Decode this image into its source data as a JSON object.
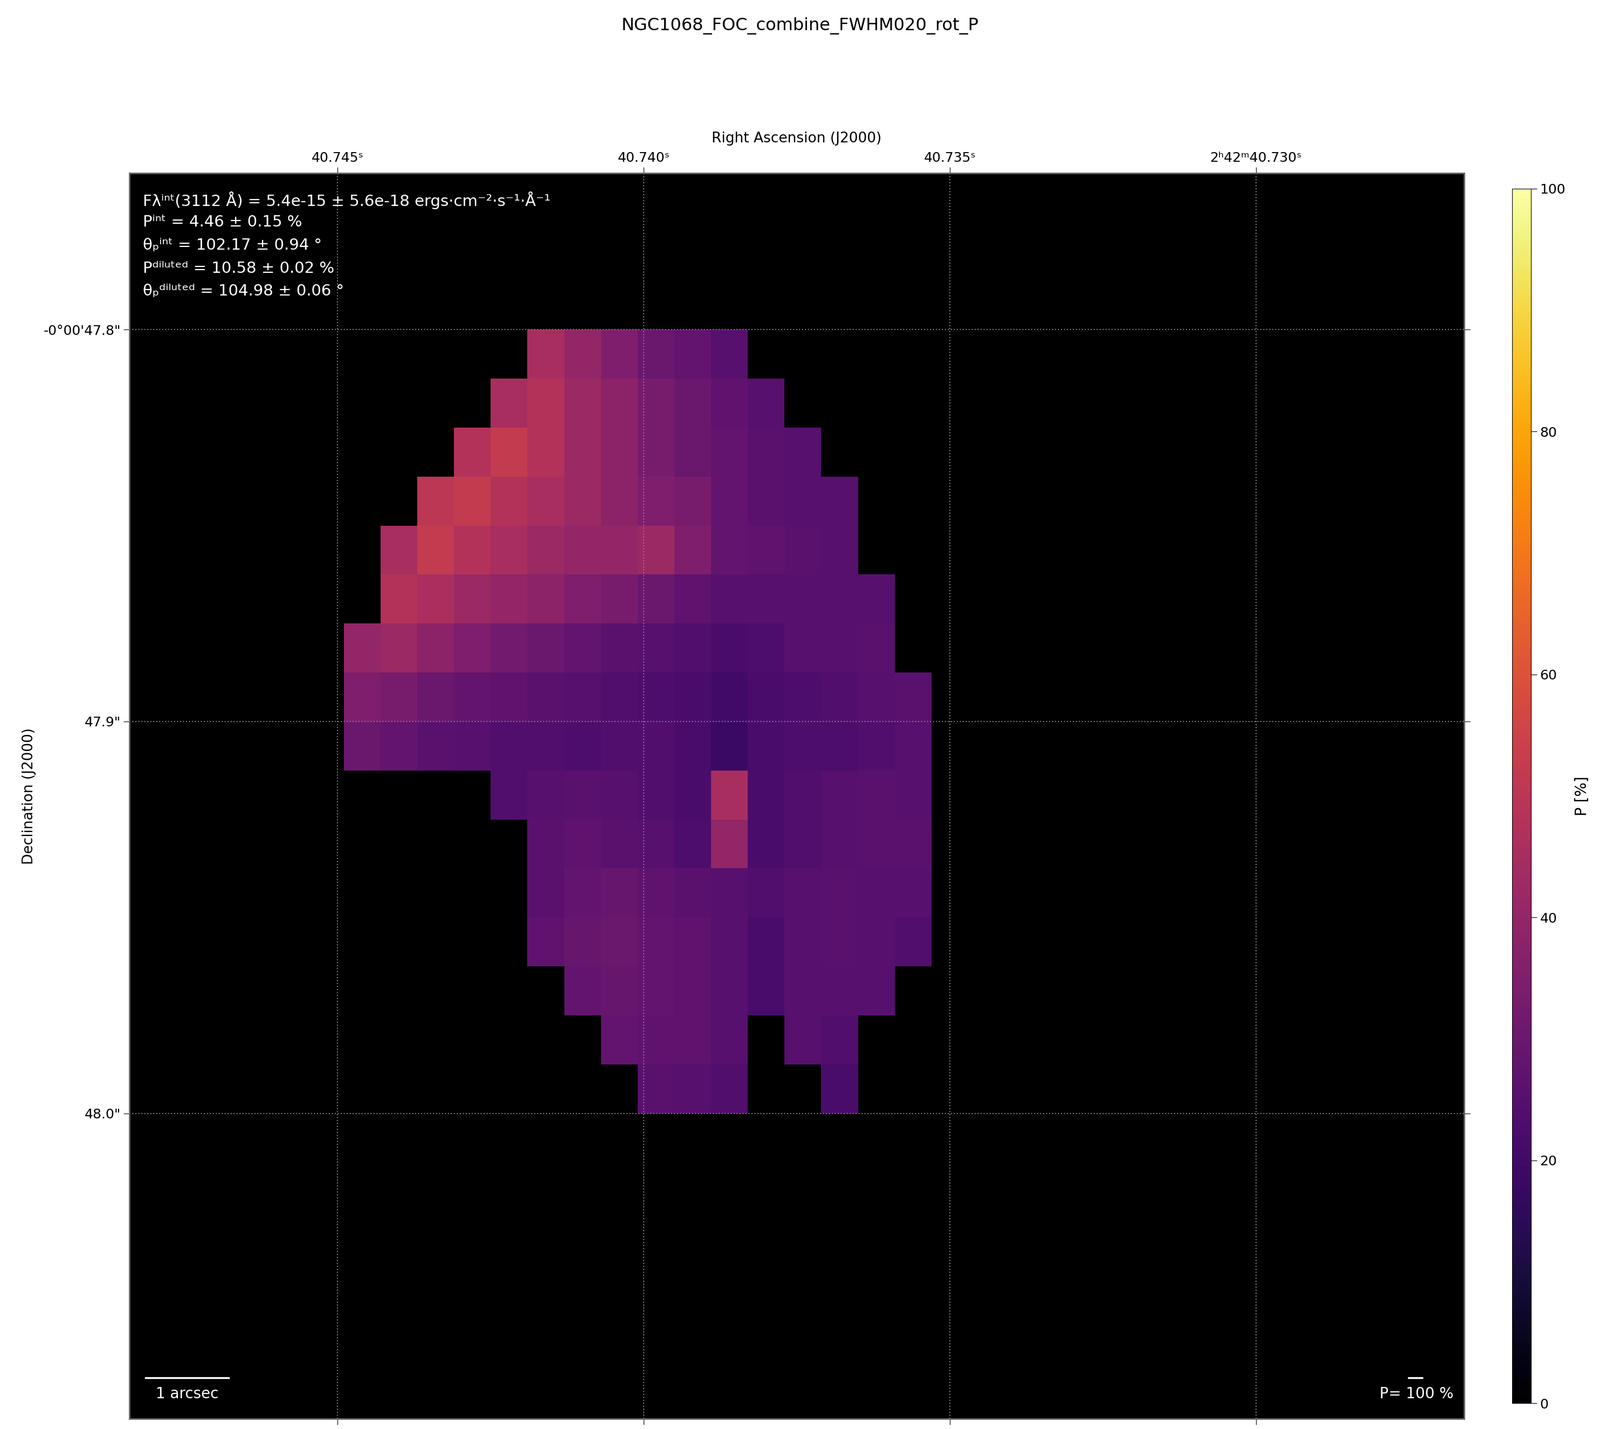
{
  "chart_data": {
    "type": "heatmap",
    "title": "NGC1068_FOC_combine_FWHM020_rot_P",
    "x_label": "Right Ascension (J2000)",
    "y_label": "Declination (J2000)",
    "xlim": [
      40.7484,
      40.7266
    ],
    "ylim": [
      48.078,
      47.76
    ],
    "xticks": [
      {
        "value": 40.745,
        "label": "40.745ˢ"
      },
      {
        "value": 40.74,
        "label": "40.740ˢ"
      },
      {
        "value": 40.735,
        "label": "40.735ˢ"
      },
      {
        "value": 40.73,
        "label": "2ʰ42ᵐ40.730ˢ"
      }
    ],
    "yticks": [
      {
        "value": 47.8,
        "label": "-0°00'47.8\""
      },
      {
        "value": 47.9,
        "label": "47.9\""
      },
      {
        "value": 48.0,
        "label": "48.0\""
      }
    ],
    "grid": true,
    "x_edges": [
      40.7449,
      40.7443,
      40.7437,
      40.7431,
      40.7425,
      40.7419,
      40.7413,
      40.7407,
      40.7401,
      40.7395,
      40.7389,
      40.7383,
      40.7377,
      40.7371,
      40.7365,
      40.7359,
      40.7353
    ],
    "y_edges": [
      47.8,
      47.8125,
      47.825,
      47.8375,
      47.85,
      47.8625,
      47.875,
      47.8875,
      47.9,
      47.9125,
      47.925,
      47.9375,
      47.95,
      47.9625,
      47.975,
      47.9875,
      48.0
    ],
    "cells": [
      [
        null,
        null,
        null,
        null,
        null,
        45,
        40,
        35,
        30,
        28,
        25,
        null,
        null,
        null,
        null,
        null
      ],
      [
        null,
        null,
        null,
        null,
        45,
        48,
        42,
        38,
        33,
        30,
        27,
        25,
        null,
        null,
        null,
        null
      ],
      [
        null,
        null,
        null,
        48,
        52,
        48,
        42,
        38,
        33,
        30,
        28,
        26,
        25,
        null,
        null,
        null
      ],
      [
        null,
        null,
        50,
        52,
        48,
        45,
        42,
        38,
        35,
        33,
        28,
        26,
        25,
        25,
        null,
        null
      ],
      [
        null,
        45,
        52,
        48,
        45,
        42,
        40,
        40,
        42,
        35,
        28,
        27,
        26,
        25,
        null,
        null
      ],
      [
        null,
        48,
        46,
        42,
        40,
        38,
        35,
        33,
        30,
        27,
        25,
        25,
        25,
        25,
        25,
        null
      ],
      [
        40,
        42,
        38,
        35,
        32,
        30,
        28,
        26,
        25,
        24,
        22,
        23,
        25,
        25,
        26,
        null
      ],
      [
        35,
        33,
        30,
        28,
        27,
        26,
        25,
        24,
        23,
        22,
        20,
        22,
        23,
        24,
        25,
        26
      ],
      [
        30,
        28,
        26,
        25,
        24,
        24,
        23,
        24,
        24,
        22,
        18,
        22,
        23,
        23,
        24,
        25
      ],
      [
        null,
        null,
        null,
        null,
        24,
        25,
        26,
        25,
        24,
        22,
        45,
        22,
        24,
        25,
        26,
        25
      ],
      [
        null,
        null,
        null,
        null,
        null,
        26,
        27,
        26,
        25,
        23,
        40,
        22,
        24,
        25,
        26,
        26
      ],
      [
        null,
        null,
        null,
        null,
        null,
        26,
        28,
        29,
        27,
        26,
        25,
        24,
        25,
        26,
        25,
        25
      ],
      [
        null,
        null,
        null,
        null,
        null,
        27,
        29,
        30,
        28,
        27,
        25,
        22,
        25,
        26,
        25,
        24
      ],
      [
        null,
        null,
        null,
        null,
        null,
        null,
        28,
        29,
        28,
        27,
        25,
        22,
        25,
        25,
        25,
        null
      ],
      [
        null,
        null,
        null,
        null,
        null,
        null,
        null,
        28,
        27,
        27,
        25,
        null,
        25,
        24,
        null,
        null
      ],
      [
        null,
        null,
        null,
        null,
        null,
        null,
        null,
        null,
        26,
        25,
        24,
        null,
        null,
        22,
        null,
        null
      ]
    ],
    "colorbar": {
      "label": "P [%]",
      "range": [
        0,
        100
      ],
      "ticks": [
        0,
        20,
        40,
        60,
        80,
        100
      ]
    },
    "annotations": [
      "Fλⁱⁿᵗ(3112 Å) = 5.4e-15 ± 5.6e-18 ergs·cm⁻²·s⁻¹·Å⁻¹",
      "Pⁱⁿᵗ = 4.46 ± 0.15 %",
      "θₚⁱⁿᵗ = 102.17 ± 0.94 °",
      "Pᵈⁱˡᵘᵗᵉᵈ = 10.58 ± 0.02 %",
      "θₚᵈⁱˡᵘᵗᵉᵈ = 104.98 ± 0.06 °"
    ],
    "scale_bar_label": "1 arcsec",
    "vector_scale_label": "P= 100 %"
  }
}
